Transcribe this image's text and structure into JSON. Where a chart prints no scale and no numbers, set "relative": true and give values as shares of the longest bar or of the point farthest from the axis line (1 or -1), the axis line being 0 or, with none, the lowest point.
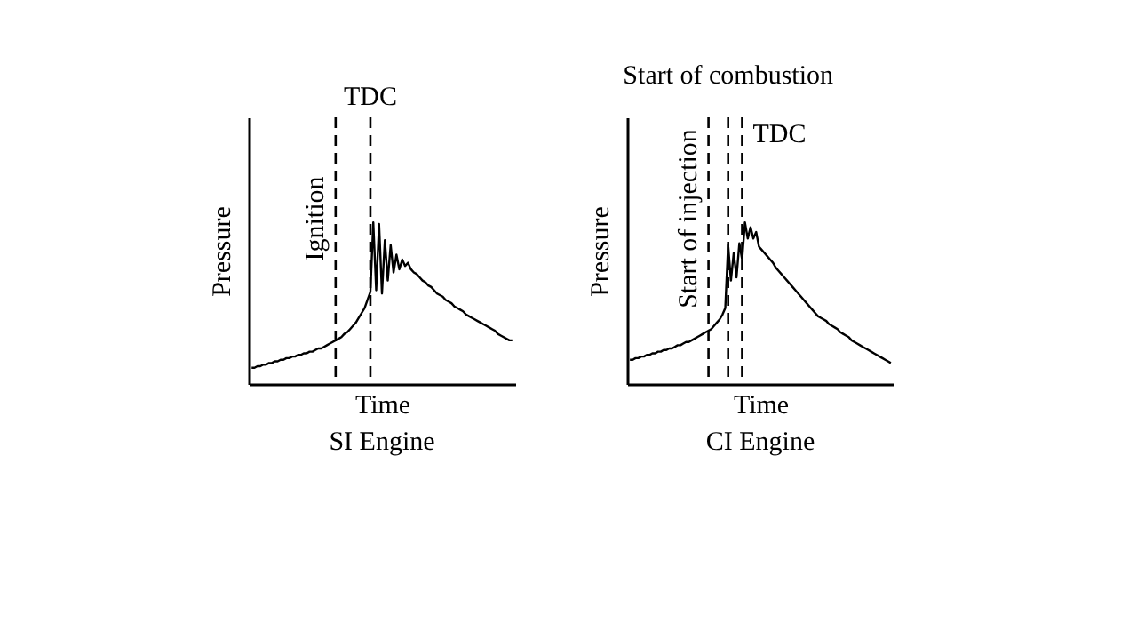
{
  "chart_data": [
    {
      "type": "line",
      "title": "SI Engine",
      "xlabel": "Time",
      "ylabel": "Pressure",
      "relative": true,
      "categories": [
        null,
        null,
        null,
        null,
        null,
        null,
        null,
        null,
        null,
        null,
        null,
        null,
        null,
        null,
        null,
        null,
        null,
        null,
        null,
        null,
        null,
        null,
        null,
        null,
        null,
        null,
        null,
        null,
        null,
        null,
        null,
        null,
        null,
        null,
        null,
        null,
        null,
        null,
        null,
        null,
        null,
        null,
        null,
        null,
        null,
        null,
        null,
        null,
        null,
        null,
        null,
        null,
        null,
        null,
        null,
        null,
        null,
        null,
        null,
        null,
        null,
        null,
        null,
        null,
        null,
        null,
        null,
        null,
        null,
        null,
        null,
        null,
        null,
        null,
        null,
        null,
        null,
        null,
        null,
        null,
        null,
        null,
        null,
        null,
        null,
        null,
        null,
        null,
        null,
        null,
        null
      ],
      "series": [
        {
          "color": "#000000",
          "line_style": "solid",
          "values": [
            0.1,
            0.1,
            0.11,
            0.11,
            0.12,
            0.12,
            0.13,
            0.13,
            0.14,
            0.14,
            0.15,
            0.15,
            0.16,
            0.16,
            0.17,
            0.17,
            0.18,
            0.18,
            0.19,
            0.19,
            0.2,
            0.2,
            0.21,
            0.22,
            0.22,
            0.23,
            0.24,
            0.25,
            0.26,
            0.27,
            0.28,
            0.29,
            0.31,
            0.32,
            0.34,
            0.36,
            0.38,
            0.41,
            0.44,
            0.47,
            0.52,
            0.57,
            1.0,
            0.58,
            0.99,
            0.56,
            0.89,
            0.64,
            0.86,
            0.69,
            0.8,
            0.71,
            0.77,
            0.73,
            0.75,
            0.71,
            0.69,
            0.68,
            0.66,
            0.64,
            0.63,
            0.61,
            0.6,
            0.58,
            0.56,
            0.55,
            0.54,
            0.52,
            0.51,
            0.5,
            0.48,
            0.47,
            0.46,
            0.45,
            0.43,
            0.42,
            0.41,
            0.4,
            0.39,
            0.38,
            0.37,
            0.36,
            0.35,
            0.34,
            0.33,
            0.31,
            0.3,
            0.29,
            0.28,
            0.27,
            0.27
          ]
        }
      ],
      "annotations": [
        "Ignition",
        "TDC"
      ]
    },
    {
      "type": "line",
      "title": "CI Engine",
      "xlabel": "Time",
      "ylabel": "Pressure",
      "relative": true,
      "categories": [
        null,
        null,
        null,
        null,
        null,
        null,
        null,
        null,
        null,
        null,
        null,
        null,
        null,
        null,
        null,
        null,
        null,
        null,
        null,
        null,
        null,
        null,
        null,
        null,
        null,
        null,
        null,
        null,
        null,
        null,
        null,
        null,
        null,
        null,
        null,
        null,
        null,
        null,
        null,
        null,
        null,
        null,
        null,
        null,
        null,
        null,
        null,
        null,
        null,
        null,
        null,
        null,
        null,
        null,
        null,
        null,
        null,
        null,
        null,
        null,
        null,
        null,
        null,
        null,
        null,
        null,
        null,
        null,
        null,
        null,
        null,
        null,
        null,
        null,
        null,
        null,
        null,
        null,
        null,
        null,
        null,
        null,
        null,
        null,
        null,
        null,
        null,
        null,
        null,
        null,
        null,
        null,
        null,
        null
      ],
      "series": [
        {
          "color": "#000000",
          "line_style": "solid",
          "values": [
            0.15,
            0.15,
            0.16,
            0.16,
            0.17,
            0.17,
            0.18,
            0.18,
            0.19,
            0.19,
            0.2,
            0.2,
            0.21,
            0.21,
            0.22,
            0.22,
            0.23,
            0.24,
            0.24,
            0.25,
            0.26,
            0.26,
            0.27,
            0.28,
            0.29,
            0.3,
            0.31,
            0.32,
            0.33,
            0.34,
            0.36,
            0.38,
            0.4,
            0.43,
            0.47,
            0.86,
            0.64,
            0.81,
            0.66,
            0.87,
            0.77,
            1.0,
            0.9,
            0.97,
            0.9,
            0.94,
            0.85,
            0.83,
            0.81,
            0.79,
            0.77,
            0.75,
            0.72,
            0.7,
            0.68,
            0.66,
            0.64,
            0.62,
            0.6,
            0.58,
            0.56,
            0.54,
            0.52,
            0.5,
            0.48,
            0.46,
            0.44,
            0.42,
            0.41,
            0.4,
            0.39,
            0.37,
            0.36,
            0.35,
            0.34,
            0.32,
            0.31,
            0.3,
            0.29,
            0.27,
            0.26,
            0.25,
            0.24,
            0.23,
            0.22,
            0.21,
            0.2,
            0.19,
            0.18,
            0.17,
            0.16,
            0.15,
            0.14,
            0.13
          ]
        }
      ],
      "annotations": [
        "Start of injection",
        "Start of combustion",
        "TDC"
      ]
    }
  ]
}
